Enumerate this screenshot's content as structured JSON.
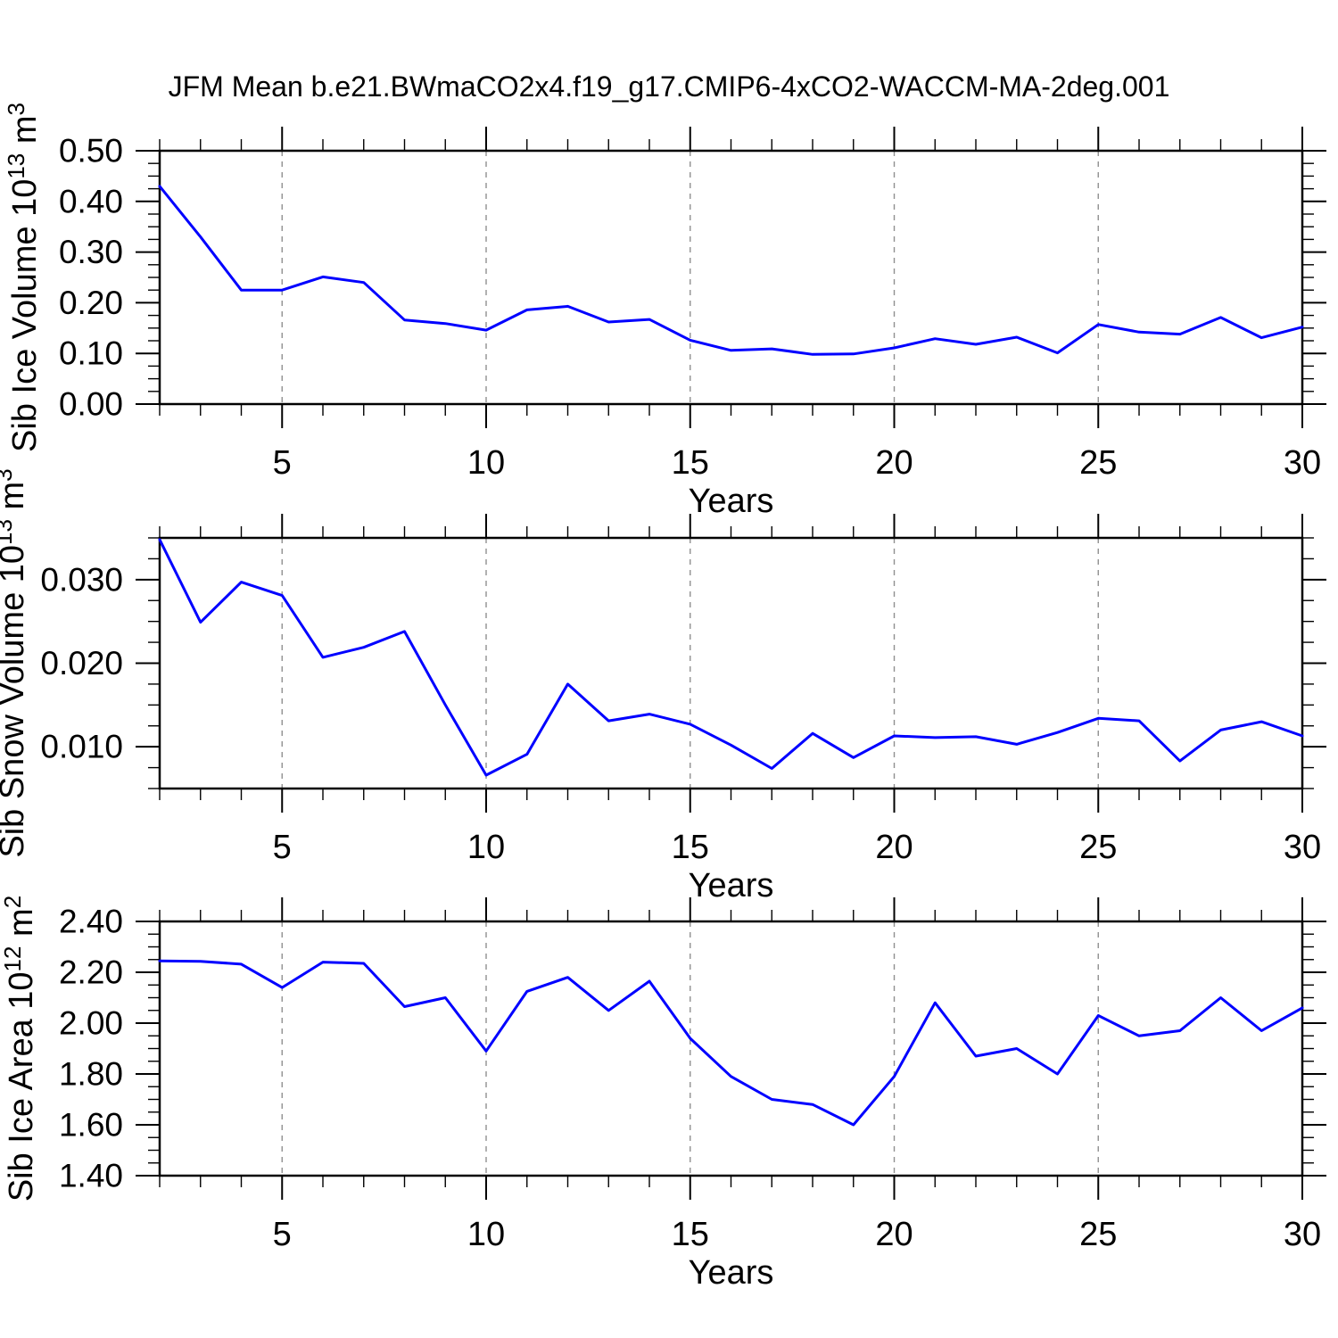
{
  "title": "JFM Mean b.e21.BWmaCO2x4.f19_g17.CMIP6-4xCO2-WACCM-MA-2deg.001",
  "colors": {
    "line": "#0000ff",
    "axis": "#000000",
    "grid": "#909090",
    "text": "#000000",
    "background": "#ffffff"
  },
  "x_axis": {
    "label": "Years",
    "range": [
      2,
      30
    ],
    "major_ticks": [
      5,
      10,
      15,
      20,
      25,
      30
    ],
    "major_tick_labels": [
      "5",
      "10",
      "15",
      "20",
      "25",
      "30"
    ],
    "minor_tick_step": 1
  },
  "chart_data": [
    {
      "type": "line",
      "name": "ice-volume",
      "title": "",
      "xlabel": "Years",
      "ylabel": "Sib Ice Volume 10¹³ m³",
      "ylabel_parts": [
        {
          "t": "Sib Ice Volume 10"
        },
        {
          "t": "13",
          "sup": true
        },
        {
          "t": " m"
        },
        {
          "t": "3",
          "sup": true
        }
      ],
      "ylim": [
        0.0,
        0.5
      ],
      "ytick_values": [
        0.0,
        0.1,
        0.2,
        0.3,
        0.4,
        0.5
      ],
      "ytick_labels": [
        "0.00",
        "0.10",
        "0.20",
        "0.30",
        "0.40",
        "0.50"
      ],
      "yminor_step": 0.025,
      "grid": "vertical-dashed",
      "legend": "none",
      "x": [
        2,
        3,
        4,
        5,
        6,
        7,
        8,
        9,
        10,
        11,
        12,
        13,
        14,
        15,
        16,
        17,
        18,
        19,
        20,
        21,
        22,
        23,
        24,
        25,
        26,
        27,
        28,
        29,
        30
      ],
      "values": [
        0.43,
        0.33,
        0.225,
        0.225,
        0.251,
        0.24,
        0.166,
        0.159,
        0.146,
        0.186,
        0.193,
        0.162,
        0.167,
        0.126,
        0.106,
        0.109,
        0.098,
        0.099,
        0.111,
        0.129,
        0.118,
        0.132,
        0.101,
        0.157,
        0.142,
        0.138,
        0.171,
        0.131,
        0.152
      ]
    },
    {
      "type": "line",
      "name": "snow-volume",
      "title": "",
      "xlabel": "Years",
      "ylabel": "Sib Snow Volume 10¹³ m³",
      "ylabel_parts": [
        {
          "t": "Sib Snow Volume 10"
        },
        {
          "t": "13",
          "sup": true
        },
        {
          "t": " m"
        },
        {
          "t": "3",
          "sup": true
        }
      ],
      "ylim": [
        0.005,
        0.035
      ],
      "ytick_values": [
        0.01,
        0.02,
        0.03
      ],
      "ytick_labels": [
        "0.010",
        "0.020",
        "0.030"
      ],
      "yminor_step": 0.0025,
      "grid": "vertical-dashed",
      "legend": "none",
      "x": [
        2,
        3,
        4,
        5,
        6,
        7,
        8,
        9,
        10,
        11,
        12,
        13,
        14,
        15,
        16,
        17,
        18,
        19,
        20,
        21,
        22,
        23,
        24,
        25,
        26,
        27,
        28,
        29,
        30
      ],
      "values": [
        0.0348,
        0.0249,
        0.0297,
        0.0281,
        0.0207,
        0.0219,
        0.0238,
        0.015,
        0.0066,
        0.0091,
        0.0175,
        0.0131,
        0.0139,
        0.0127,
        0.0102,
        0.0074,
        0.0116,
        0.0087,
        0.0113,
        0.0111,
        0.0112,
        0.0103,
        0.0117,
        0.0134,
        0.0131,
        0.0083,
        0.012,
        0.013,
        0.0113
      ]
    },
    {
      "type": "line",
      "name": "ice-area",
      "title": "",
      "xlabel": "Years",
      "ylabel": "Sib Ice Area 10¹² m²",
      "ylabel_parts": [
        {
          "t": "Sib Ice Area 10"
        },
        {
          "t": "12",
          "sup": true
        },
        {
          "t": " m"
        },
        {
          "t": "2",
          "sup": true
        }
      ],
      "ylim": [
        1.4,
        2.4
      ],
      "ytick_values": [
        1.4,
        1.6,
        1.8,
        2.0,
        2.2,
        2.4
      ],
      "ytick_labels": [
        "1.40",
        "1.60",
        "1.80",
        "2.00",
        "2.20",
        "2.40"
      ],
      "yminor_step": 0.05,
      "grid": "vertical-dashed",
      "legend": "none",
      "x": [
        2,
        3,
        4,
        5,
        6,
        7,
        8,
        9,
        10,
        11,
        12,
        13,
        14,
        15,
        16,
        17,
        18,
        19,
        20,
        21,
        22,
        23,
        24,
        25,
        26,
        27,
        28,
        29,
        30
      ],
      "values": [
        2.245,
        2.243,
        2.232,
        2.14,
        2.24,
        2.235,
        2.065,
        2.1,
        1.89,
        2.125,
        2.18,
        2.05,
        2.165,
        1.94,
        1.79,
        1.7,
        1.68,
        1.6,
        1.79,
        2.08,
        1.87,
        1.9,
        1.8,
        2.03,
        1.95,
        1.97,
        2.1,
        1.97,
        2.06
      ]
    }
  ]
}
